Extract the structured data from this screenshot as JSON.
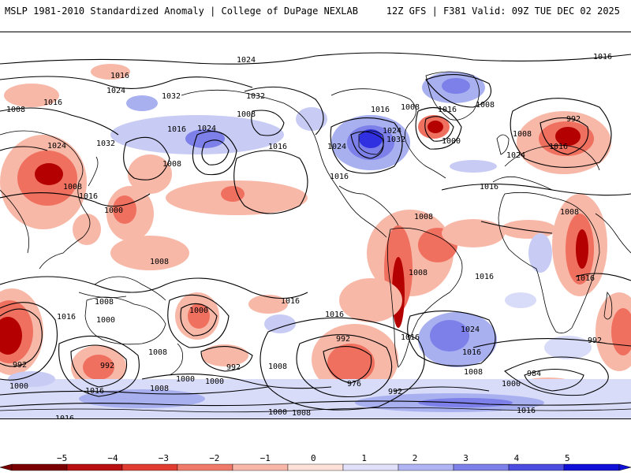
{
  "header": {
    "title": "MSLP 1981-2010 Standardized Anomaly | College of DuPage NEXLAB",
    "run_info": "12Z GFS | F381 Valid: 09Z TUE DEC 02 2025"
  },
  "map": {
    "type": "world-mslp-anomaly",
    "contour_labels": [
      "1024",
      "1016",
      "1016",
      "1008",
      "1024",
      "1032",
      "1032",
      "1016",
      "1008",
      "1016",
      "1024",
      "1024",
      "1008",
      "1016",
      "1008",
      "1032",
      "1016",
      "1024",
      "1024",
      "1016",
      "1032",
      "1008",
      "1000",
      "1008",
      "992",
      "1016",
      "1016",
      "1008",
      "1016",
      "1024",
      "1016",
      "1008",
      "1008",
      "1016",
      "1016",
      "1008",
      "1008",
      "1000",
      "1016",
      "1016",
      "1000",
      "1000",
      "1008",
      "1008",
      "992",
      "992",
      "992",
      "1000",
      "1000",
      "1016",
      "1016",
      "992",
      "1016",
      "1008",
      "984",
      "1016",
      "1000",
      "1008",
      "1000",
      "976",
      "1016",
      "1000",
      "1008",
      "992",
      "1024",
      "1016",
      "992",
      "1008",
      "1016",
      "1016"
    ],
    "colors": {
      "strong_negative": "#b40000",
      "negative": "#f07060",
      "weak_negative": "#f8b8a8",
      "positive": "#a8b0f0",
      "strong_positive": "#3030e0",
      "land_outline": "#000000"
    }
  },
  "colorbar": {
    "ticks": [
      "−5",
      "−4",
      "−3",
      "−2",
      "−1",
      "0",
      "1",
      "2",
      "3",
      "4",
      "5"
    ],
    "colors": [
      "#7a0000",
      "#b81010",
      "#e03c32",
      "#f07a6a",
      "#f8b6a8",
      "#fde0d8",
      "#e0e0fa",
      "#b0b4f2",
      "#7c80e8",
      "#4c4ce0",
      "#1010d8"
    ]
  }
}
